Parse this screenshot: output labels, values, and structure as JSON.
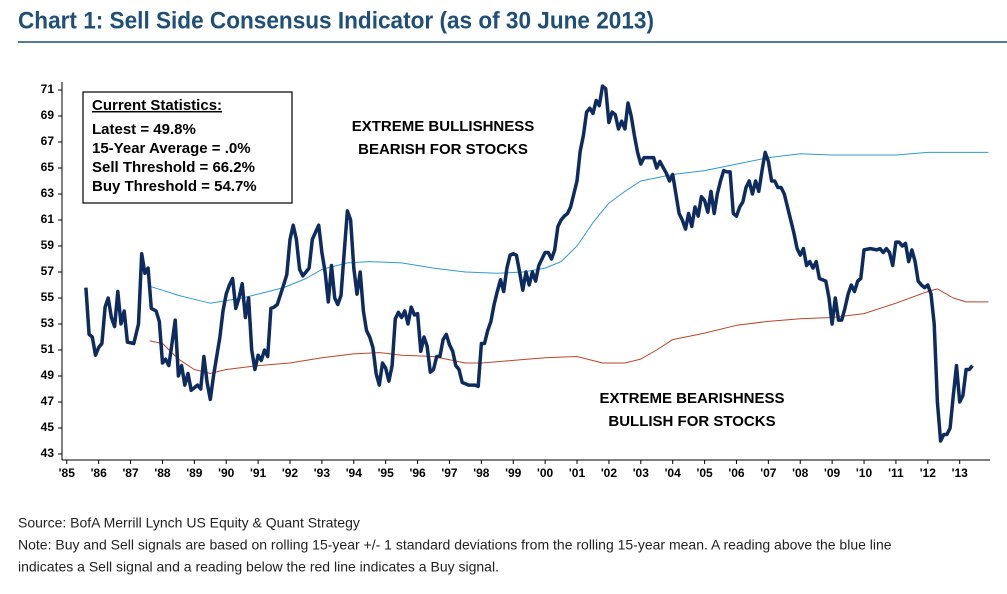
{
  "chart_data": {
    "type": "line",
    "title": "Chart 1: Sell Side Consensus Indicator (as of 30 June 2013)",
    "stats_title": "Current Statistics:",
    "stats": [
      "Latest = 49.8%",
      "15-Year Average = .0%",
      "Sell Threshold = 66.2%",
      "Buy Threshold = 54.7%"
    ],
    "annotation_bull": [
      "EXTREME BULLISHNESS",
      "BEARISH FOR STOCKS"
    ],
    "annotation_bear": [
      "EXTREME BEARISHNESS",
      "BULLISH FOR STOCKS"
    ],
    "source": "Source: BofA Merrill Lynch US Equity & Quant Strategy",
    "note": [
      "Note: Buy and Sell signals are based on rolling 15-year +/- 1 standard deviations from the rolling 15-year mean. A reading above the blue line",
      "indicates a Sell signal and a reading below the red line indicates a Buy signal."
    ],
    "xlim": [
      1984.85,
      2013.95
    ],
    "xticks": [
      {
        "value": 1985,
        "label": "'85"
      },
      {
        "value": 1986,
        "label": "'86"
      },
      {
        "value": 1987,
        "label": "'87"
      },
      {
        "value": 1988,
        "label": "'88"
      },
      {
        "value": 1989,
        "label": "'89"
      },
      {
        "value": 1990,
        "label": "'90"
      },
      {
        "value": 1991,
        "label": "'91"
      },
      {
        "value": 1992,
        "label": "'92"
      },
      {
        "value": 1993,
        "label": "'93"
      },
      {
        "value": 1994,
        "label": "'94"
      },
      {
        "value": 1995,
        "label": "'95"
      },
      {
        "value": 1996,
        "label": "'96"
      },
      {
        "value": 1997,
        "label": "'97"
      },
      {
        "value": 1998,
        "label": "'98"
      },
      {
        "value": 1999,
        "label": "'99"
      },
      {
        "value": 2000,
        "label": "'00"
      },
      {
        "value": 2001,
        "label": "'01"
      },
      {
        "value": 2002,
        "label": "'02"
      },
      {
        "value": 2003,
        "label": "'03"
      },
      {
        "value": 2004,
        "label": "'04"
      },
      {
        "value": 2005,
        "label": "'05"
      },
      {
        "value": 2006,
        "label": "'06"
      },
      {
        "value": 2007,
        "label": "'07"
      },
      {
        "value": 2008,
        "label": "'08"
      },
      {
        "value": 2009,
        "label": "'09"
      },
      {
        "value": 2010,
        "label": "'10"
      },
      {
        "value": 2011,
        "label": "'11"
      },
      {
        "value": 2012,
        "label": "'12"
      },
      {
        "value": 2013,
        "label": "'13"
      }
    ],
    "ylim": [
      43,
      71
    ],
    "yticks": [
      43,
      45,
      47,
      49,
      51,
      53,
      55,
      57,
      59,
      61,
      63,
      65,
      67,
      69,
      71
    ],
    "series": [
      {
        "color": "#3399cc",
        "x": [
          1987.6,
          1988,
          1988.5,
          1989,
          1989.5,
          1990,
          1990.5,
          1991,
          1991.8,
          1992.5,
          1993,
          1993.8,
          1994.5,
          1995.5,
          1996.5,
          1997.5,
          1998.5,
          1999.3,
          2000,
          2000.5,
          2001,
          2001.5,
          2002,
          2002.5,
          2003,
          2004,
          2005,
          2006,
          2007,
          2008,
          2009,
          2010,
          2011,
          2012,
          2013,
          2013.9
        ],
        "values": [
          55.9,
          55.6,
          55.2,
          54.9,
          54.6,
          54.8,
          55.0,
          55.3,
          55.8,
          56.5,
          57.2,
          57.7,
          57.8,
          57.7,
          57.3,
          57.0,
          56.9,
          57.0,
          57.3,
          57.8,
          59.0,
          60.8,
          62.3,
          63.2,
          64.0,
          64.5,
          64.8,
          65.3,
          65.8,
          66.1,
          66.0,
          66.0,
          66.0,
          66.2,
          66.2,
          66.2
        ]
      },
      {
        "color": "#b5472b",
        "x": [
          1987.6,
          1988,
          1988.5,
          1989,
          1989.5,
          1990,
          1991,
          1992,
          1993,
          1994,
          1994.8,
          1995.5,
          1996.5,
          1997.5,
          1998,
          1999,
          2000,
          2001,
          2001.8,
          2002.5,
          2003,
          2003.5,
          2004,
          2005,
          2006,
          2007,
          2008,
          2009,
          2010,
          2011,
          2012,
          2012.3,
          2012.8,
          2013.2,
          2013.9
        ],
        "values": [
          51.7,
          51.5,
          50.3,
          49.5,
          49.2,
          49.5,
          49.8,
          50.0,
          50.4,
          50.7,
          50.8,
          50.6,
          50.5,
          50.0,
          50.0,
          50.2,
          50.4,
          50.5,
          50.0,
          50.0,
          50.3,
          51.0,
          51.8,
          52.3,
          52.9,
          53.2,
          53.4,
          53.5,
          53.8,
          54.6,
          55.5,
          55.7,
          55.0,
          54.7,
          54.7
        ]
      },
      {
        "color": "#0d2b5e",
        "x": [
          1985.6,
          1985.7,
          1985.8,
          1985.9,
          1986.0,
          1986.1,
          1986.2,
          1986.3,
          1986.4,
          1986.5,
          1986.6,
          1986.7,
          1986.8,
          1986.9,
          1987.1,
          1987.25,
          1987.35,
          1987.45,
          1987.55,
          1987.65,
          1987.8,
          1987.9,
          1988.0,
          1988.1,
          1988.2,
          1988.3,
          1988.4,
          1988.5,
          1988.6,
          1988.7,
          1988.8,
          1988.9,
          1989.1,
          1989.2,
          1989.3,
          1989.4,
          1989.5,
          1989.6,
          1989.8,
          1989.9,
          1990.0,
          1990.1,
          1990.2,
          1990.3,
          1990.4,
          1990.5,
          1990.6,
          1990.7,
          1990.8,
          1990.9,
          1991.0,
          1991.1,
          1991.2,
          1991.3,
          1991.4,
          1991.5,
          1991.6,
          1991.8,
          1991.9,
          1992.0,
          1992.1,
          1992.2,
          1992.3,
          1992.4,
          1992.6,
          1992.7,
          1992.9,
          1993.0,
          1993.1,
          1993.2,
          1993.3,
          1993.4,
          1993.5,
          1993.6,
          1993.7,
          1993.8,
          1993.9,
          1994.0,
          1994.1,
          1994.2,
          1994.3,
          1994.4,
          1994.5,
          1994.6,
          1994.7,
          1994.8,
          1994.9,
          1995.0,
          1995.1,
          1995.2,
          1995.3,
          1995.4,
          1995.5,
          1995.6,
          1995.7,
          1995.8,
          1995.9,
          1996.0,
          1996.1,
          1996.2,
          1996.3,
          1996.4,
          1996.5,
          1996.6,
          1996.7,
          1996.8,
          1996.9,
          1997.0,
          1997.1,
          1997.2,
          1997.3,
          1997.4,
          1997.5,
          1997.6,
          1997.8,
          1997.9,
          1998.0,
          1998.1,
          1998.2,
          1998.3,
          1998.4,
          1998.5,
          1998.6,
          1998.7,
          1998.8,
          1998.9,
          1999.0,
          1999.1,
          1999.2,
          1999.3,
          1999.4,
          1999.5,
          1999.6,
          1999.7,
          1999.8,
          2000.0,
          2000.1,
          2000.2,
          2000.3,
          2000.4,
          2000.5,
          2000.6,
          2000.7,
          2000.8,
          2000.9,
          2001.0,
          2001.1,
          2001.2,
          2001.3,
          2001.4,
          2001.5,
          2001.6,
          2001.7,
          2001.8,
          2001.9,
          2002.0,
          2002.1,
          2002.2,
          2002.3,
          2002.4,
          2002.5,
          2002.6,
          2002.7,
          2002.8,
          2002.9,
          2003.0,
          2003.1,
          2003.2,
          2003.4,
          2003.5,
          2003.6,
          2003.8,
          2003.9,
          2004.0,
          2004.1,
          2004.2,
          2004.3,
          2004.4,
          2004.5,
          2004.6,
          2004.7,
          2004.8,
          2004.9,
          2005.0,
          2005.1,
          2005.2,
          2005.3,
          2005.4,
          2005.5,
          2005.6,
          2005.7,
          2005.8,
          2005.9,
          2006.0,
          2006.1,
          2006.2,
          2006.3,
          2006.4,
          2006.5,
          2006.6,
          2006.7,
          2006.8,
          2006.9,
          2007.0,
          2007.1,
          2007.2,
          2007.3,
          2007.4,
          2007.5,
          2007.6,
          2007.7,
          2007.8,
          2007.9,
          2008.0,
          2008.1,
          2008.2,
          2008.3,
          2008.4,
          2008.5,
          2008.6,
          2008.8,
          2008.9,
          2009.0,
          2009.1,
          2009.2,
          2009.3,
          2009.4,
          2009.5,
          2009.6,
          2009.7,
          2009.8,
          2009.9,
          2010.0,
          2010.2,
          2010.4,
          2010.5,
          2010.6,
          2010.7,
          2010.8,
          2010.9,
          2011.0,
          2011.1,
          2011.2,
          2011.3,
          2011.4,
          2011.5,
          2011.6,
          2011.7,
          2011.8,
          2011.9,
          2012.0,
          2012.1,
          2012.2,
          2012.3,
          2012.4,
          2012.5,
          2012.6,
          2012.7,
          2012.8,
          2012.9,
          2013.0,
          2013.1,
          2013.2,
          2013.3,
          2013.4
        ],
        "values": [
          55.8,
          52.2,
          52.0,
          50.6,
          51.2,
          51.5,
          54.3,
          55.0,
          53.5,
          52.8,
          55.5,
          53.0,
          54.0,
          51.6,
          51.5,
          53.0,
          58.4,
          56.9,
          57.3,
          54.2,
          54.0,
          53.2,
          50.0,
          50.3,
          49.8,
          51.5,
          53.3,
          49.0,
          49.8,
          48.3,
          49.2,
          47.9,
          48.3,
          48.0,
          50.5,
          48.5,
          47.2,
          49.0,
          52.0,
          54.0,
          55.3,
          56.0,
          56.5,
          54.2,
          55.0,
          56.1,
          53.5,
          55.0,
          51.0,
          49.5,
          50.6,
          50.2,
          51.0,
          50.5,
          54.2,
          54.3,
          54.5,
          56.0,
          56.8,
          59.5,
          60.6,
          59.5,
          57.2,
          56.7,
          57.3,
          59.5,
          60.6,
          58.5,
          57.0,
          54.7,
          57.5,
          55.0,
          54.5,
          55.2,
          58.5,
          61.7,
          61.0,
          57.3,
          55.3,
          57.0,
          54.0,
          52.5,
          52.0,
          51.2,
          49.2,
          48.3,
          50.0,
          49.6,
          48.6,
          49.8,
          53.4,
          53.9,
          53.5,
          54.0,
          53.0,
          54.3,
          53.7,
          53.8,
          50.9,
          52.0,
          51.3,
          49.3,
          49.5,
          50.5,
          50.5,
          51.8,
          52.2,
          51.4,
          50.9,
          49.8,
          49.5,
          48.5,
          48.4,
          48.3,
          48.3,
          48.2,
          51.5,
          51.5,
          52.5,
          53.2,
          54.5,
          55.5,
          56.4,
          55.5,
          57.3,
          58.3,
          58.4,
          58.3,
          57.0,
          55.6,
          57.0,
          56.0,
          57.0,
          56.3,
          57.5,
          58.5,
          58.5,
          58.0,
          58.7,
          60.5,
          61.0,
          61.3,
          61.5,
          62.0,
          63.0,
          64.0,
          66.3,
          67.5,
          69.3,
          69.6,
          69.2,
          70.2,
          69.8,
          71.3,
          71.1,
          68.5,
          69.3,
          69.1,
          68.0,
          68.6,
          68.0,
          70.0,
          69.0,
          67.5,
          66.2,
          65.3,
          65.8,
          65.8,
          65.8,
          65.0,
          65.5,
          64.6,
          64.0,
          64.5,
          63.0,
          61.5,
          61.0,
          60.3,
          61.5,
          60.5,
          62.0,
          61.3,
          62.8,
          62.5,
          61.6,
          63.2,
          61.5,
          63.0,
          64.0,
          64.8,
          64.7,
          64.7,
          61.5,
          61.3,
          62.0,
          62.4,
          63.5,
          64.0,
          63.0,
          64.0,
          63.2,
          64.8,
          66.2,
          65.5,
          64.0,
          64.0,
          63.5,
          63.5,
          63.0,
          62.0,
          61.0,
          60.0,
          58.8,
          58.3,
          58.8,
          57.5,
          57.8,
          57.3,
          57.8,
          56.5,
          56.3,
          55.0,
          53.0,
          55.0,
          53.3,
          53.3,
          54.2,
          55.3,
          56.0,
          55.5,
          56.3,
          56.5,
          58.7,
          58.8,
          58.7,
          58.8,
          58.5,
          58.8,
          58.5,
          57.5,
          59.3,
          59.3,
          59.0,
          59.2,
          57.8,
          58.7,
          57.8,
          56.3,
          56.0,
          55.8,
          56.0,
          55.3,
          53.0,
          47.0,
          44.0,
          44.5,
          44.5,
          45.0,
          47.5,
          49.8,
          47.0,
          47.5,
          49.5,
          49.5,
          49.8
        ]
      }
    ]
  }
}
